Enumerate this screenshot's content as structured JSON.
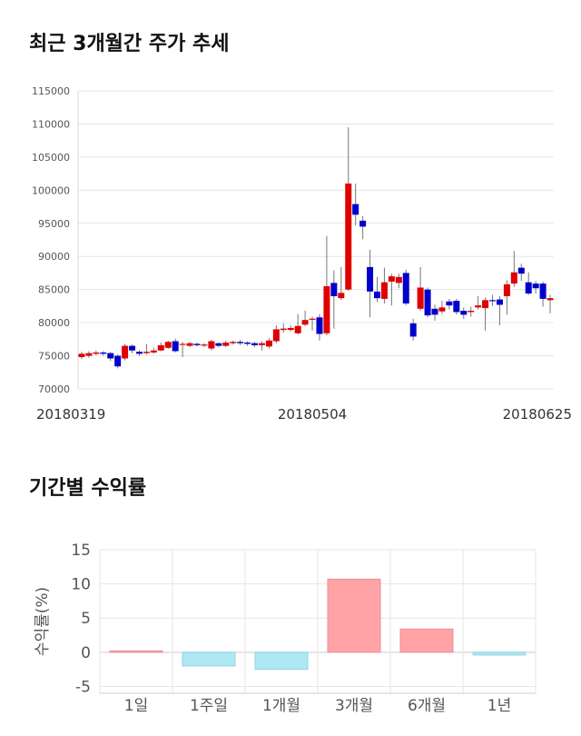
{
  "titles": {
    "price": "최근 3개월간 주가 추세",
    "returns": "기간별 수익률"
  },
  "chart_data": [
    {
      "type": "candlestick",
      "title": "최근 3개월간 주가 추세",
      "ylim": [
        70000,
        115000
      ],
      "yticks": [
        70000,
        75000,
        80000,
        85000,
        90000,
        95000,
        100000,
        105000,
        110000,
        115000
      ],
      "x_tick_labels": [
        {
          "index": 0,
          "label": "20180319"
        },
        {
          "index": 32,
          "label": "20180504"
        },
        {
          "index": 64,
          "label": "20180625"
        }
      ],
      "grid": true,
      "colors": {
        "up": "#e00000",
        "down": "#0000cc",
        "wick": "#777777"
      },
      "candles": [
        [
          74800,
          75300,
          74500,
          75600
        ],
        [
          75000,
          75400,
          74700,
          75700
        ],
        [
          75300,
          75500,
          75100,
          75800
        ],
        [
          75500,
          75300,
          75000,
          75700
        ],
        [
          75400,
          74600,
          74200,
          75600
        ],
        [
          75000,
          73400,
          73100,
          75200
        ],
        [
          74600,
          76500,
          74300,
          76800
        ],
        [
          76500,
          75800,
          75400,
          76700
        ],
        [
          75600,
          75300,
          75000,
          75800
        ],
        [
          75400,
          75600,
          75200,
          76800
        ],
        [
          75500,
          75800,
          75300,
          76200
        ],
        [
          75800,
          76600,
          75700,
          77000
        ],
        [
          76200,
          77100,
          76000,
          77300
        ],
        [
          77200,
          75700,
          75500,
          77600
        ],
        [
          76700,
          76800,
          74800,
          77100
        ],
        [
          76500,
          76900,
          76300,
          77100
        ],
        [
          76800,
          76600,
          76400,
          77000
        ],
        [
          76600,
          76700,
          76300,
          76900
        ],
        [
          76100,
          77200,
          75800,
          77400
        ],
        [
          76900,
          76500,
          76300,
          77000
        ],
        [
          76500,
          77000,
          76300,
          77300
        ],
        [
          76900,
          77100,
          76700,
          77300
        ],
        [
          77100,
          76900,
          76600,
          77400
        ],
        [
          77000,
          76800,
          76500,
          77200
        ],
        [
          76900,
          76600,
          76300,
          77100
        ],
        [
          76600,
          76900,
          75800,
          77200
        ],
        [
          76400,
          77300,
          76100,
          77700
        ],
        [
          77200,
          79000,
          76900,
          79600
        ],
        [
          78900,
          79100,
          78500,
          79900
        ],
        [
          78900,
          79200,
          78700,
          79600
        ],
        [
          78400,
          79500,
          78200,
          81300
        ],
        [
          79700,
          80400,
          79500,
          81800
        ],
        [
          80500,
          80600,
          78800,
          80900
        ],
        [
          80800,
          78300,
          77300,
          81300
        ],
        [
          78400,
          85500,
          78100,
          93100
        ],
        [
          86000,
          84000,
          79100,
          87900
        ],
        [
          83700,
          84500,
          83400,
          88400
        ],
        [
          85000,
          101000,
          84800,
          109500
        ],
        [
          97900,
          96300,
          94700,
          101000
        ],
        [
          95400,
          94500,
          92600,
          96100
        ],
        [
          88400,
          84700,
          80800,
          91000
        ],
        [
          84700,
          83700,
          83100,
          86900
        ],
        [
          83600,
          86100,
          82900,
          88300
        ],
        [
          86200,
          87000,
          82600,
          87400
        ],
        [
          86000,
          86900,
          85200,
          87400
        ],
        [
          87500,
          82900,
          82600,
          88000
        ],
        [
          79900,
          77900,
          77300,
          80600
        ],
        [
          82100,
          85300,
          81800,
          88400
        ],
        [
          85000,
          81100,
          80800,
          85300
        ],
        [
          82100,
          81200,
          80300,
          82700
        ],
        [
          81700,
          82300,
          81300,
          83300
        ],
        [
          83200,
          82600,
          82000,
          83600
        ],
        [
          83300,
          81600,
          81200,
          83600
        ],
        [
          81800,
          81200,
          80600,
          82300
        ],
        [
          81600,
          81800,
          80900,
          82400
        ],
        [
          82300,
          82600,
          82000,
          84000
        ],
        [
          82200,
          83400,
          78800,
          83800
        ],
        [
          83400,
          83300,
          82500,
          84200
        ],
        [
          83500,
          82700,
          79600,
          84000
        ],
        [
          84000,
          85800,
          81200,
          86400
        ],
        [
          85900,
          87600,
          85400,
          90800
        ],
        [
          88300,
          87400,
          86300,
          88900
        ],
        [
          86100,
          84400,
          84200,
          87600
        ],
        [
          85900,
          85200,
          84400,
          86300
        ],
        [
          85900,
          83600,
          82400,
          86200
        ],
        [
          83400,
          83700,
          81400,
          84200
        ]
      ]
    },
    {
      "type": "bar",
      "title": "기간별 수익률",
      "ylabel": "수익률(%)",
      "categories": [
        "1일",
        "1주일",
        "1개월",
        "3개월",
        "6개월",
        "1년"
      ],
      "values": [
        0.2,
        -2.0,
        -2.5,
        10.7,
        3.4,
        -0.4
      ],
      "ylim": [
        -6,
        15
      ],
      "yticks": [
        -5,
        0,
        5,
        10,
        15
      ],
      "grid": true,
      "colors": {
        "positive": "#ffa3a6",
        "negative": "#aee8f5",
        "positive_edge": "#e89097",
        "negative_edge": "#8fd3e4"
      }
    }
  ]
}
